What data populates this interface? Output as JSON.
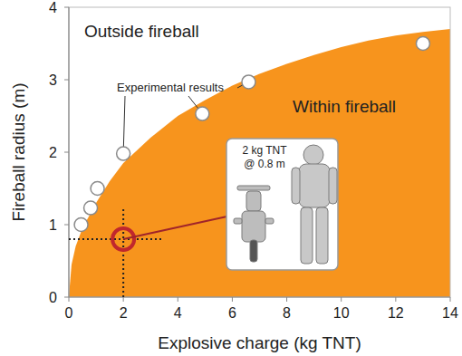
{
  "chart_data": {
    "type": "area",
    "x_label": "Explosive charge (kg TNT)",
    "y_label": "Fireball radius (m)",
    "xlim": [
      0,
      14
    ],
    "ylim": [
      0,
      4
    ],
    "xticks": [
      0,
      2,
      4,
      6,
      8,
      10,
      12,
      14
    ],
    "yticks": [
      0,
      1,
      2,
      3,
      4
    ],
    "grid": false,
    "annotations": [
      "Outside fireball"
    ],
    "inset_text": [
      "2 kg TNT",
      "@ 0.8 m"
    ],
    "series": [
      {
        "name": "Within fireball",
        "type": "area",
        "color": "#f7941d",
        "x": [
          0,
          0.1,
          0.25,
          0.5,
          1,
          1.5,
          2,
          3,
          4,
          5,
          6,
          7,
          8,
          9,
          10,
          11,
          12,
          13,
          14
        ],
        "values": [
          0,
          0.45,
          0.7,
          0.95,
          1.3,
          1.6,
          1.85,
          2.2,
          2.5,
          2.72,
          2.92,
          3.08,
          3.22,
          3.34,
          3.45,
          3.54,
          3.61,
          3.66,
          3.7
        ]
      },
      {
        "name": "Experimental results",
        "type": "scatter",
        "marker": "circle",
        "color": "#ffffff",
        "x": [
          0.45,
          0.8,
          1.05,
          2,
          4.9,
          6.6,
          13
        ],
        "values": [
          1.0,
          1.23,
          1.5,
          1.98,
          2.53,
          2.97,
          3.5
        ]
      },
      {
        "type": "scatter",
        "marker": "ring",
        "color": "#c0272d",
        "x": [
          2
        ],
        "values": [
          0.8
        ]
      }
    ]
  }
}
